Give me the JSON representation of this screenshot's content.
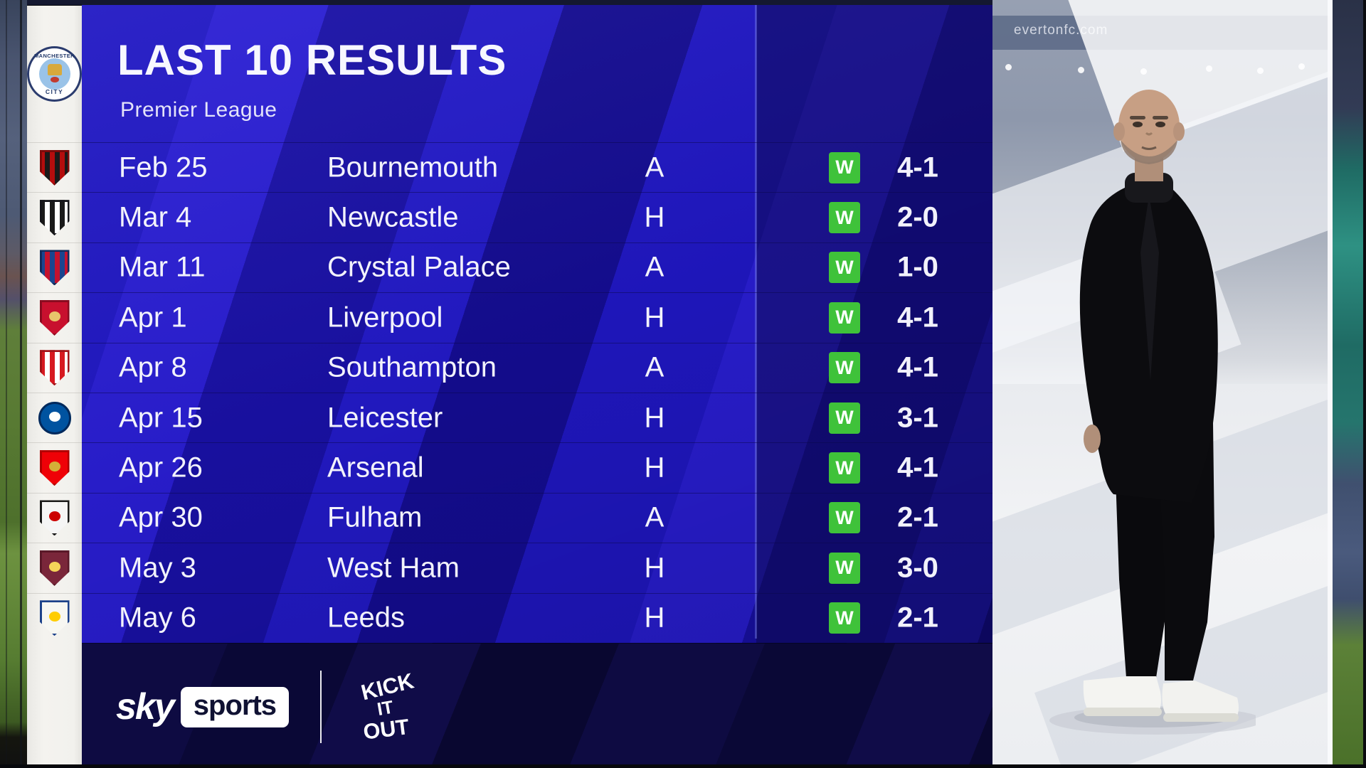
{
  "header": {
    "title": "LAST 10 RESULTS",
    "subtitle": "Premier League"
  },
  "team": {
    "name": "Manchester City",
    "badge_text_top": "MANCHESTER",
    "badge_text_bottom": "CITY"
  },
  "colors": {
    "win_green": "#3fc23a",
    "panel_blue": "#1c13b8",
    "panel_blue_bright": "#2b1fd4",
    "panel_blue_deep": "#150d92",
    "bottom_band_navy": "#0e0b42",
    "strip_white": "#f2f1ed",
    "sky_navy": "#101233",
    "text_white": "#f2f2fb"
  },
  "results": [
    {
      "date": "Feb 25",
      "opponent": "Bournemouth",
      "venue": "A",
      "result": "W",
      "score": "4-1",
      "crest": {
        "shape": "shield",
        "stripes": [
          "#b50d0d",
          "#1a1a1a"
        ],
        "border": "#7d0a0a",
        "inner": ""
      }
    },
    {
      "date": "Mar 4",
      "opponent": "Newcastle",
      "venue": "H",
      "result": "W",
      "score": "2-0",
      "crest": {
        "shape": "shield",
        "stripes": [
          "#1a1a1a",
          "#ffffff"
        ],
        "border": "#15151a",
        "inner": ""
      }
    },
    {
      "date": "Mar 11",
      "opponent": "Crystal Palace",
      "venue": "A",
      "result": "W",
      "score": "1-0",
      "crest": {
        "shape": "shield",
        "stripes": [
          "#1b458f",
          "#c4122e"
        ],
        "border": "#122c5c",
        "inner": ""
      }
    },
    {
      "date": "Apr 1",
      "opponent": "Liverpool",
      "venue": "H",
      "result": "W",
      "score": "4-1",
      "crest": {
        "shape": "shield",
        "stripes": [
          "#c8102e"
        ],
        "border": "#8a0c20",
        "inner": "#e8c36b"
      }
    },
    {
      "date": "Apr 8",
      "opponent": "Southampton",
      "venue": "A",
      "result": "W",
      "score": "4-1",
      "crest": {
        "shape": "shield",
        "stripes": [
          "#d71920",
          "#ffffff"
        ],
        "border": "#a21318",
        "inner": ""
      }
    },
    {
      "date": "Apr 15",
      "opponent": "Leicester",
      "venue": "H",
      "result": "W",
      "score": "3-1",
      "crest": {
        "shape": "circle",
        "stripes": [
          "#0053a0"
        ],
        "border": "#00295c",
        "inner": "#ffffff"
      }
    },
    {
      "date": "Apr 26",
      "opponent": "Arsenal",
      "venue": "H",
      "result": "W",
      "score": "4-1",
      "crest": {
        "shape": "shield",
        "stripes": [
          "#ef0107"
        ],
        "border": "#b00000",
        "inner": "#d4af37"
      }
    },
    {
      "date": "Apr 30",
      "opponent": "Fulham",
      "venue": "A",
      "result": "W",
      "score": "2-1",
      "crest": {
        "shape": "shield",
        "stripes": [
          "#f5f5f5"
        ],
        "border": "#1a1a1a",
        "inner": "#cc0000"
      }
    },
    {
      "date": "May 3",
      "opponent": "West Ham",
      "venue": "H",
      "result": "W",
      "score": "3-0",
      "crest": {
        "shape": "shield",
        "stripes": [
          "#7a263a"
        ],
        "border": "#5a1828",
        "inner": "#f3d459"
      }
    },
    {
      "date": "May 6",
      "opponent": "Leeds",
      "venue": "H",
      "result": "W",
      "score": "2-1",
      "crest": {
        "shape": "shield",
        "stripes": [
          "#f7f7f2"
        ],
        "border": "#1d428a",
        "inner": "#ffcd00"
      }
    }
  ],
  "branding": {
    "sky": "sky",
    "sports": "sports",
    "kick_it_out": [
      "KICK",
      "IT",
      "OUT"
    ]
  },
  "photo": {
    "watermark": "evertonfc.com"
  }
}
